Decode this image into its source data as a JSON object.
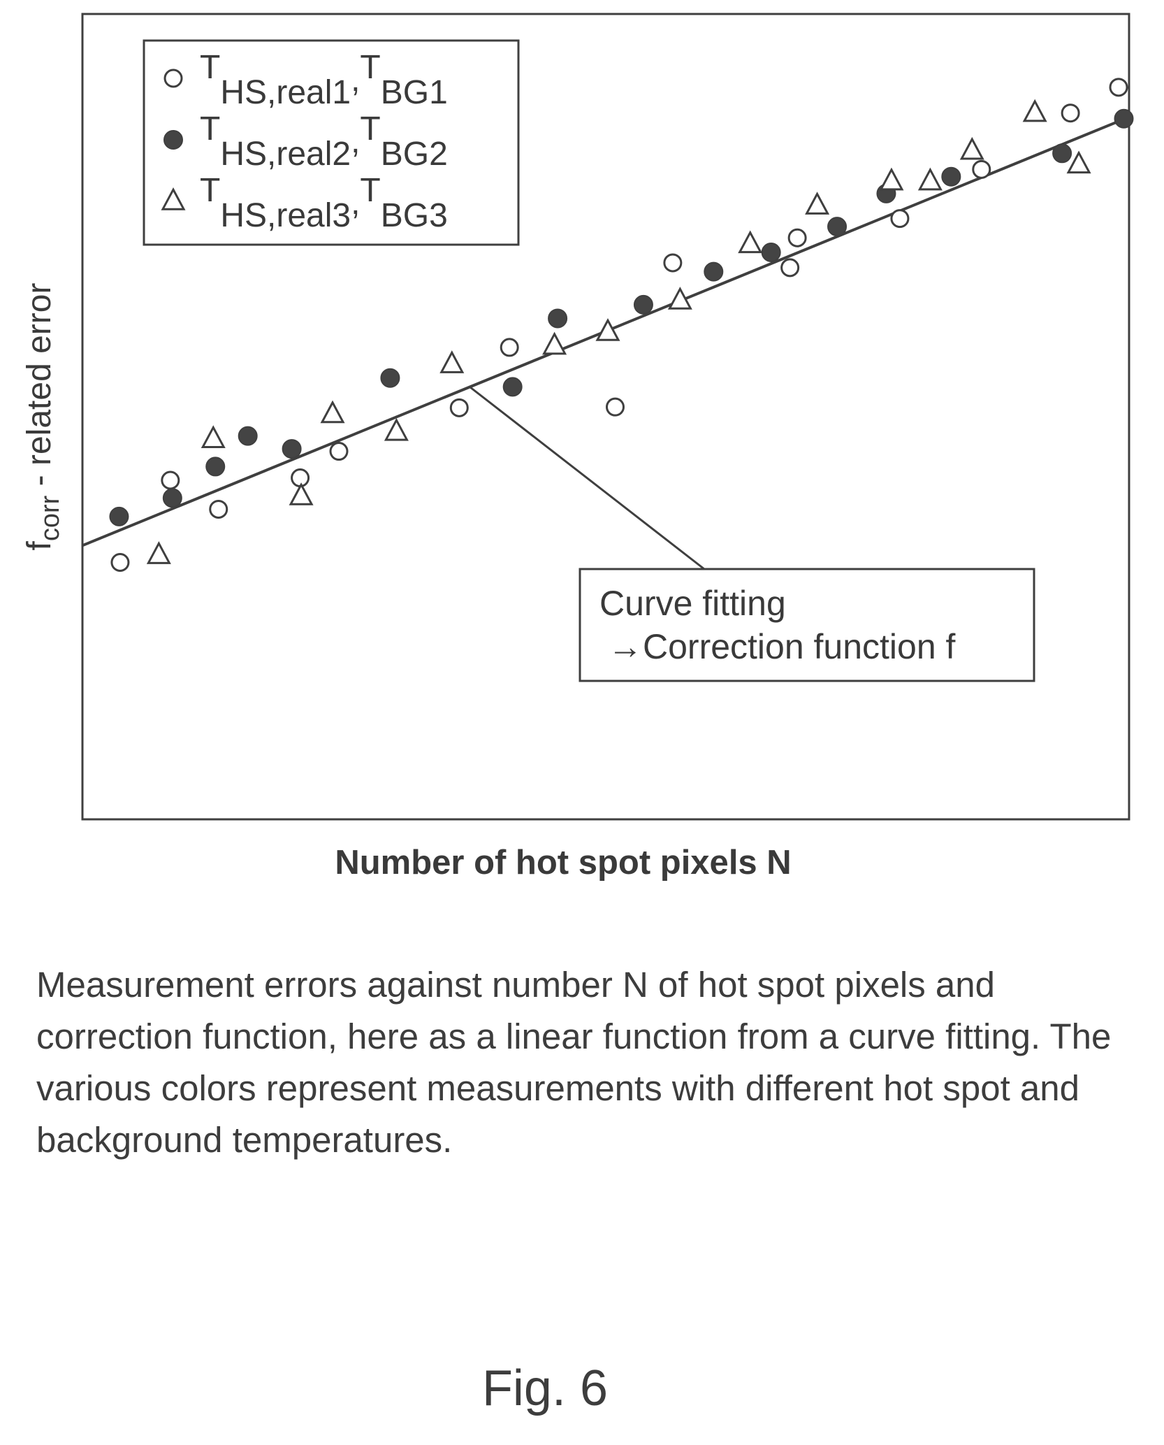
{
  "chart_data": {
    "type": "scatter",
    "xlabel": "Number of hot spot pixels N",
    "ylabel_main": "f",
    "ylabel_sub": "corr",
    "ylabel_rest": " - related error",
    "grid": false,
    "legend_placement": "top-left",
    "xlim": [
      0,
      100
    ],
    "ylim": [
      0,
      100
    ],
    "series": [
      {
        "name": "T_HS,real1, T_BG1",
        "legend": {
          "main1": "T",
          "sub1": "HS,real1",
          "sep": ",",
          "main2": "T",
          "sub2": "BG1"
        },
        "marker": "circle-open",
        "x": [
          3.6,
          8.4,
          13.0,
          20.8,
          24.5,
          36.0,
          40.8,
          50.9,
          56.4,
          67.6,
          68.3,
          78.1,
          85.9,
          94.4,
          99.0
        ],
        "y": [
          31.9,
          42.1,
          38.5,
          42.4,
          45.7,
          51.1,
          58.6,
          51.2,
          69.1,
          68.5,
          72.2,
          74.6,
          80.7,
          87.7,
          90.9
        ]
      },
      {
        "name": "T_HS,real2, T_BG2",
        "legend": {
          "main1": "T",
          "sub1": "HS,real2",
          "sep": ",",
          "main2": "T",
          "sub2": "BG2"
        },
        "marker": "circle-filled",
        "x": [
          3.5,
          8.6,
          12.7,
          15.8,
          20.0,
          29.4,
          41.1,
          45.4,
          53.6,
          60.3,
          65.8,
          72.1,
          76.8,
          83.0,
          93.6,
          99.5
        ],
        "y": [
          37.6,
          39.9,
          43.8,
          47.6,
          46.0,
          54.8,
          53.7,
          62.2,
          63.9,
          68.0,
          70.4,
          73.6,
          77.7,
          79.8,
          82.7,
          87.0
        ]
      },
      {
        "name": "T_HS,real3, T_BG3",
        "legend": {
          "main1": "T",
          "sub1": "HS,real3",
          "sep": ",",
          "main2": "T",
          "sub2": "BG3"
        },
        "marker": "triangle-open",
        "x": [
          7.3,
          12.5,
          20.9,
          23.9,
          30.0,
          35.3,
          45.1,
          50.2,
          57.1,
          63.8,
          70.2,
          77.3,
          81.0,
          85.0,
          91.0,
          95.2
        ],
        "y": [
          32.8,
          47.2,
          40.1,
          50.3,
          48.1,
          56.5,
          58.8,
          60.5,
          64.4,
          71.4,
          76.2,
          79.2,
          79.2,
          83.0,
          87.7,
          81.3
        ]
      }
    ],
    "fit_line": {
      "label": "Curve fitting",
      "x": [
        0,
        100
      ],
      "y": [
        34.0,
        87.2
      ]
    },
    "annotation": {
      "line1": "Curve fitting",
      "arrow": "→",
      "line2": "Correction function f",
      "points_to": {
        "x": 37.0,
        "y": 53.7
      }
    }
  },
  "caption": "Measurement errors against number N of hot spot pixels and correction function, here as a linear function from a curve fitting. The various colors represent measurements with different hot spot and background temperatures.",
  "figure_label": "Fig. 6"
}
